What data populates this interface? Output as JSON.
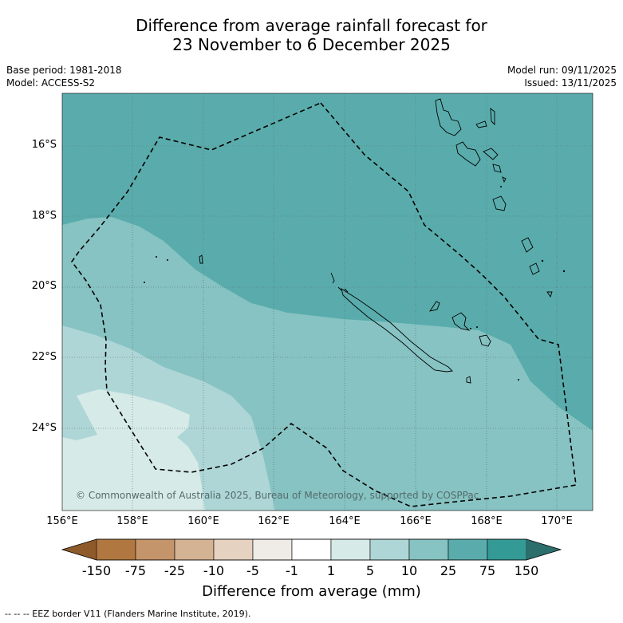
{
  "title": {
    "line1": "Difference from average rainfall forecast for",
    "line2": "23 November to 6 December 2025"
  },
  "meta": {
    "base_period": "Base period: 1981-2018",
    "model": "Model: ACCESS-S2",
    "model_run": "Model run: 09/11/2025",
    "issued": "Issued: 13/11/2025"
  },
  "map": {
    "lat_labels": [
      "16°S",
      "18°S",
      "20°S",
      "22°S",
      "24°S"
    ],
    "lon_labels": [
      "156°E",
      "158°E",
      "160°E",
      "162°E",
      "164°E",
      "166°E",
      "168°E",
      "170°E"
    ],
    "copyright": "© Commonwealth of Australia 2025, Bureau of Meteorology, supported by COSPPac"
  },
  "colorbar": {
    "ticks": [
      "-150",
      "-75",
      "-25",
      "-10",
      "-5",
      "-1",
      "1",
      "5",
      "10",
      "25",
      "75",
      "150"
    ],
    "colors": [
      "#8e5a2a",
      "#b07840",
      "#c4946a",
      "#d4b294",
      "#e6d2c0",
      "#efece8",
      "#ffffff",
      "#d6eae8",
      "#aed6d6",
      "#86c3c2",
      "#5aacac",
      "#349a96",
      "#2b6e6c"
    ],
    "title": "Difference from average (mm)"
  },
  "footnote": "--  --  -- EEZ border V11 (Flanders Marine Institute, 2019)."
}
